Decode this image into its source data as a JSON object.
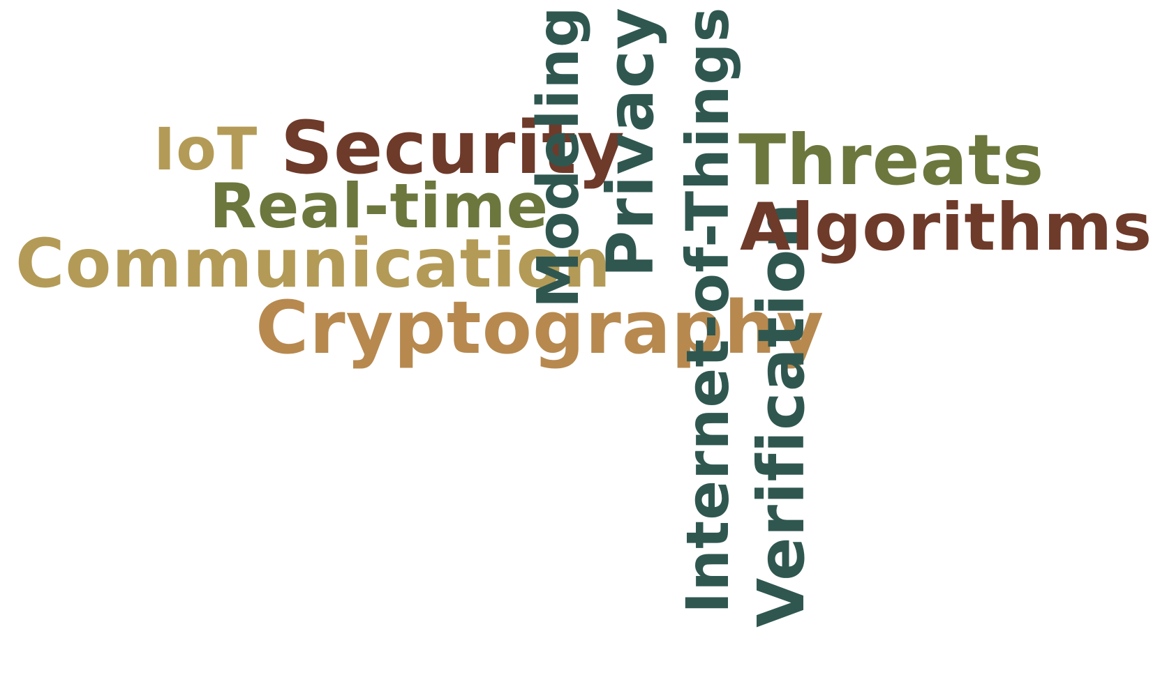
{
  "colors": {
    "background": "#ffffff",
    "gold": "#B39B57",
    "tan": "#B7894F",
    "olive": "#6B773D",
    "brown": "#6E3A2A",
    "slate": "#2F5750"
  },
  "words": [
    {
      "text": "IoT",
      "color": "#B39B57",
      "orientation": "horizontal"
    },
    {
      "text": "Security",
      "color": "#6E3A2A",
      "orientation": "horizontal"
    },
    {
      "text": "Real-time",
      "color": "#6B773D",
      "orientation": "horizontal"
    },
    {
      "text": "Communication",
      "color": "#B39B57",
      "orientation": "horizontal"
    },
    {
      "text": "Cryptography",
      "color": "#B7894F",
      "orientation": "horizontal"
    },
    {
      "text": "Modeling",
      "color": "#2F5750",
      "orientation": "vertical"
    },
    {
      "text": "Privacy",
      "color": "#2F5750",
      "orientation": "vertical"
    },
    {
      "text": "Internet-of-Things",
      "color": "#2F5750",
      "orientation": "vertical"
    },
    {
      "text": "Verification",
      "color": "#2F5750",
      "orientation": "vertical"
    },
    {
      "text": "Threats",
      "color": "#6B773D",
      "orientation": "horizontal"
    },
    {
      "text": "Algorithms",
      "color": "#6E3A2A",
      "orientation": "horizontal"
    }
  ]
}
